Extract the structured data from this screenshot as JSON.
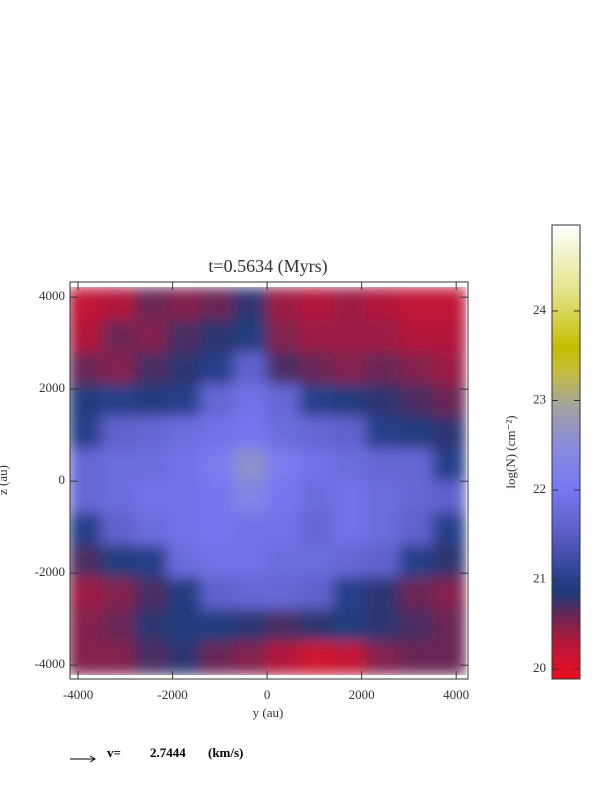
{
  "chart_data": {
    "type": "heatmap",
    "title": "t=0.5634 (Myrs)",
    "xlabel": "y (au)",
    "ylabel": "z (au)",
    "xlim": [
      -4170,
      4250
    ],
    "ylim": [
      -4300,
      4330
    ],
    "xticks": [
      -4000,
      -2000,
      0,
      2000,
      4000
    ],
    "yticks": [
      -4000,
      -2000,
      0,
      2000,
      4000
    ],
    "x": [
      -3850,
      -3150,
      -2450,
      -1750,
      -1050,
      -350,
      350,
      1050,
      1750,
      2450,
      3150,
      3850
    ],
    "y": [
      3850,
      3150,
      2450,
      1750,
      1050,
      350,
      -350,
      -1050,
      -1750,
      -2450,
      -3150,
      -3850
    ],
    "values": [
      [
        20.2,
        20.3,
        20.6,
        20.5,
        20.6,
        20.8,
        20.4,
        20.3,
        20.4,
        20.3,
        20.2,
        20.2
      ],
      [
        20.3,
        20.6,
        20.5,
        20.7,
        20.8,
        20.9,
        20.5,
        20.4,
        20.4,
        20.4,
        20.3,
        20.3
      ],
      [
        20.6,
        20.5,
        20.7,
        20.8,
        21.0,
        21.6,
        20.7,
        20.6,
        20.5,
        20.6,
        20.5,
        20.4
      ],
      [
        20.9,
        21.0,
        20.9,
        21.0,
        21.7,
        21.9,
        21.7,
        21.0,
        20.9,
        20.8,
        20.7,
        20.6
      ],
      [
        21.0,
        21.6,
        21.7,
        21.8,
        21.9,
        22.0,
        21.8,
        21.7,
        21.6,
        21.0,
        20.9,
        20.8
      ],
      [
        21.7,
        21.8,
        21.8,
        21.9,
        22.1,
        22.6,
        22.1,
        21.9,
        21.8,
        21.7,
        21.7,
        21.0
      ],
      [
        21.7,
        21.8,
        21.9,
        21.9,
        22.0,
        22.3,
        22.0,
        21.8,
        21.9,
        21.8,
        21.7,
        21.6
      ],
      [
        21.0,
        21.6,
        21.8,
        21.9,
        22.0,
        21.9,
        21.9,
        21.7,
        21.9,
        21.8,
        21.6,
        21.0
      ],
      [
        20.7,
        20.9,
        21.0,
        21.8,
        21.9,
        21.9,
        21.8,
        21.8,
        21.7,
        21.6,
        21.0,
        20.8
      ],
      [
        20.4,
        20.5,
        20.7,
        20.9,
        21.6,
        21.7,
        21.7,
        21.6,
        21.0,
        20.8,
        20.6,
        20.5
      ],
      [
        20.5,
        20.6,
        20.8,
        20.9,
        20.9,
        20.8,
        20.7,
        20.8,
        20.9,
        20.8,
        20.7,
        20.6
      ],
      [
        20.5,
        20.5,
        20.7,
        20.8,
        20.6,
        20.5,
        20.3,
        20.1,
        20.2,
        20.5,
        20.6,
        20.6
      ]
    ],
    "colorbar": {
      "label": "log(N) (cm⁻²)",
      "lim": [
        19.89,
        24.96
      ],
      "ticks": [
        20,
        21,
        22,
        23,
        24
      ]
    },
    "vector_legend": {
      "label": "v=",
      "value": 2.7444,
      "unit": "(km/s)"
    }
  }
}
